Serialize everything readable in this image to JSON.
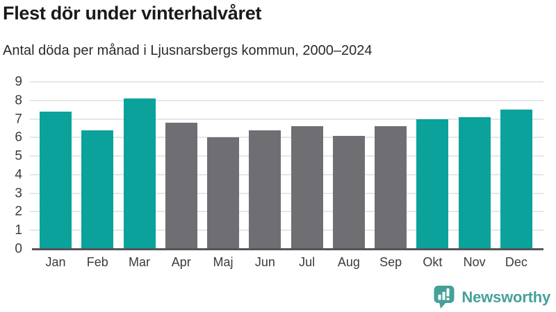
{
  "header": {
    "title": "Flest dör under vinterhalvåret",
    "subtitle": "Antal döda per månad i Ljusnarsbergs kommun, 2000–2024"
  },
  "chart_data": {
    "type": "bar",
    "title": "Flest dör under vinterhalvåret",
    "subtitle": "Antal döda per månad i Ljusnarsbergs kommun, 2000–2024",
    "categories": [
      "Jan",
      "Feb",
      "Mar",
      "Apr",
      "Maj",
      "Jun",
      "Jul",
      "Aug",
      "Sep",
      "Okt",
      "Nov",
      "Dec"
    ],
    "values": [
      7.4,
      6.4,
      8.1,
      6.8,
      6.0,
      6.4,
      6.6,
      6.1,
      6.6,
      7.0,
      7.1,
      7.5
    ],
    "bar_color_keys": [
      "teal",
      "teal",
      "teal",
      "gray",
      "gray",
      "gray",
      "gray",
      "gray",
      "gray",
      "teal",
      "teal",
      "teal"
    ],
    "colors": {
      "teal": "#0aa29b",
      "gray": "#6e6e73",
      "gridline": "#e6e6e6",
      "baseline": "#54545a"
    },
    "xlabel": "",
    "ylabel": "",
    "ylim": [
      0,
      9
    ],
    "yticks": [
      0,
      1,
      2,
      3,
      4,
      5,
      6,
      7,
      8,
      9
    ],
    "grid": true,
    "legend": "none"
  },
  "footer": {
    "brand": "Newsworthy",
    "brand_color": "#45a09a",
    "logo_icon": "newsworthy-speech-bubble-bar-chart-icon"
  }
}
